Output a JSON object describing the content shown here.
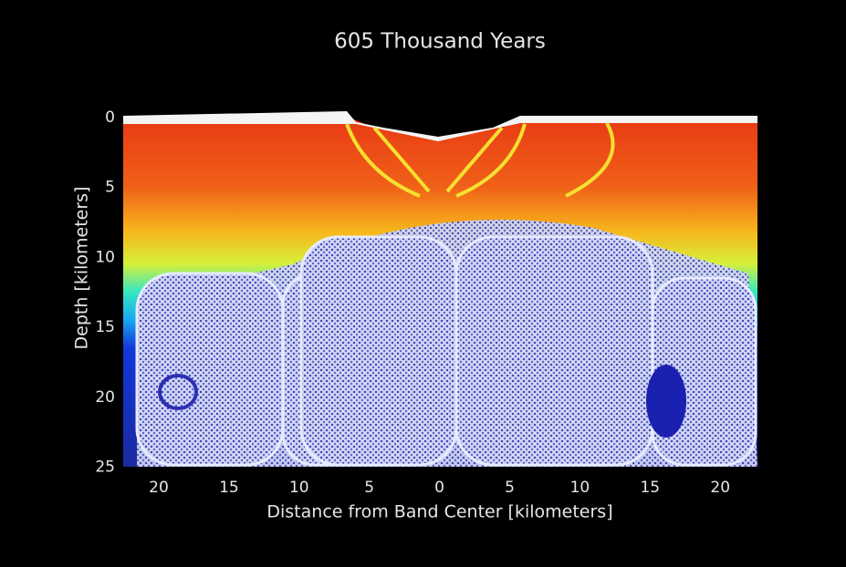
{
  "title": "605 Thousand Years",
  "x_axis": {
    "label": "Distance from Band Center   [kilometers]",
    "ticks": [
      20,
      15,
      10,
      5,
      0,
      5,
      10,
      15,
      20
    ]
  },
  "y_axis": {
    "label": "Depth   [kilometers]",
    "ticks": [
      0,
      5,
      10,
      15,
      20,
      25
    ]
  }
}
